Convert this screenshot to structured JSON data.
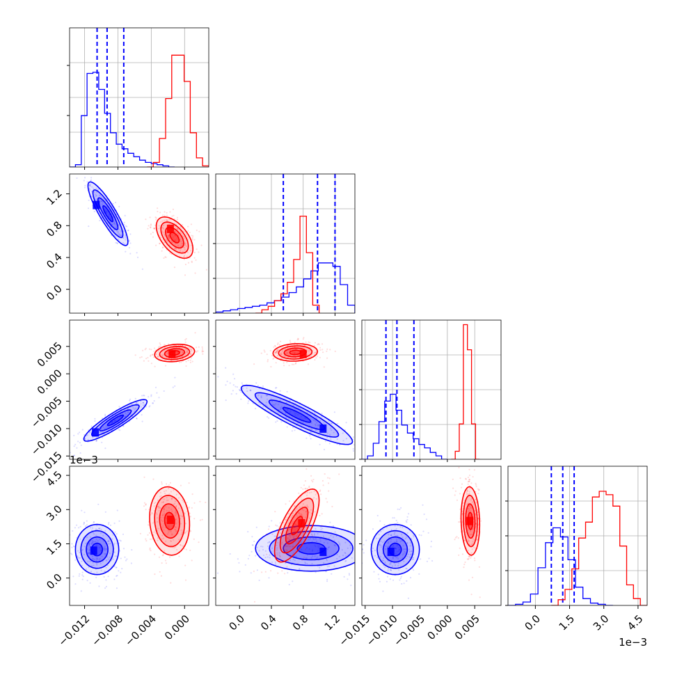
{
  "chart_data": {
    "type": "corner",
    "parameters": [
      {
        "range": [
          -0.0138,
          0.0029
        ],
        "ticks": [
          "-0.012",
          "-0.008",
          "-0.004",
          "0.000"
        ],
        "tick_values": [
          -0.012,
          -0.008,
          -0.004,
          0.0
        ],
        "offset": ""
      },
      {
        "range": [
          -0.3,
          1.45
        ],
        "ticks": [
          "0.0",
          "0.4",
          "0.8",
          "1.2"
        ],
        "tick_values": [
          0.0,
          0.4,
          0.8,
          1.2
        ],
        "offset": ""
      },
      {
        "range": [
          -0.0156,
          0.0098
        ],
        "ticks": [
          "-0.015",
          "-0.010",
          "-0.005",
          "0.000",
          "0.005"
        ],
        "tick_values": [
          -0.015,
          -0.01,
          -0.005,
          0.0,
          0.005
        ],
        "offset": ""
      },
      {
        "range": [
          -1.2,
          4.9
        ],
        "ticks": [
          "0.0",
          "1.5",
          "3.0",
          "4.5"
        ],
        "tick_values": [
          0.0,
          1.5,
          3.0,
          4.5
        ],
        "offset": "1e−3"
      }
    ],
    "series": [
      {
        "color": "#0000ff",
        "quantiles": [
          [
            -0.0105,
            -0.0093,
            -0.0073
          ],
          [
            0.55,
            0.98,
            1.2
          ],
          [
            -0.0112,
            -0.0092,
            -0.0061
          ],
          [
            0.7,
            1.2,
            1.7
          ]
        ],
        "hist": [
          {
            "edges": [
              -0.0138,
              -0.0012
            ],
            "counts": [
              0.0,
              0.02,
              0.45,
              0.82,
              0.83,
              0.68,
              0.47,
              0.3,
              0.2,
              0.16,
              0.12,
              0.09,
              0.06,
              0.04,
              0.03,
              0.02,
              0.01,
              0.0
            ]
          },
          {
            "edges": [
              -0.3,
              1.45
            ],
            "counts": [
              0.01,
              0.02,
              0.03,
              0.04,
              0.05,
              0.06,
              0.07,
              0.09,
              0.11,
              0.14,
              0.18,
              0.23,
              0.3,
              0.37,
              0.44,
              0.44,
              0.41,
              0.25,
              0.07
            ]
          },
          {
            "edges": [
              -0.0156,
              0.0
            ],
            "counts": [
              0.0,
              0.03,
              0.14,
              0.33,
              0.51,
              0.57,
              0.43,
              0.3,
              0.23,
              0.18,
              0.13,
              0.1,
              0.06,
              0.03,
              0.0
            ]
          },
          {
            "edges": [
              -1.2,
              3.4
            ],
            "counts": [
              0.0,
              0.01,
              0.03,
              0.1,
              0.33,
              0.55,
              0.68,
              0.6,
              0.4,
              0.16,
              0.06,
              0.02,
              0.01,
              0.0
            ]
          }
        ],
        "blobs": [
          {
            "i": 1,
            "j": 0,
            "cx": -0.0092,
            "cy": 0.95,
            "sx": 0.0012,
            "sy": 0.2,
            "rho": -0.88,
            "peak": [
              -0.0106,
              1.06
            ]
          },
          {
            "i": 2,
            "j": 0,
            "cx": -0.0083,
            "cy": -0.0085,
            "sx": 0.0019,
            "sy": 0.0019,
            "rho": 0.9,
            "peak": [
              -0.0107,
              -0.0107
            ]
          },
          {
            "i": 2,
            "j": 1,
            "cx": 0.72,
            "cy": -0.0075,
            "sx": 0.35,
            "sy": 0.0027,
            "rho": -0.9,
            "peak": [
              1.05,
              -0.01
            ]
          },
          {
            "i": 3,
            "j": 0,
            "cx": -0.0105,
            "cy": 1.25,
            "sx": 0.0013,
            "sy": 0.55,
            "rho": 0.0,
            "peak": [
              -0.0109,
              1.2
            ]
          },
          {
            "i": 3,
            "j": 1,
            "cx": 0.9,
            "cy": 1.3,
            "sx": 0.35,
            "sy": 0.5,
            "rho": 0.0,
            "peak": [
              1.05,
              1.15
            ]
          },
          {
            "i": 3,
            "j": 2,
            "cx": -0.0095,
            "cy": 1.25,
            "sx": 0.0022,
            "sy": 0.55,
            "rho": 0.0,
            "peak": [
              -0.0103,
              1.15
            ]
          }
        ]
      },
      {
        "color": "#ff0000",
        "quantiles": [],
        "hist": [
          {
            "edges": [
              -0.0045,
              0.0029
            ],
            "counts": [
              0.0,
              0.04,
              0.25,
              0.6,
              0.98,
              0.98,
              0.75,
              0.3,
              0.08,
              0.01
            ]
          },
          {
            "edges": [
              0.2,
              1.0
            ],
            "counts": [
              0.0,
              0.03,
              0.06,
              0.11,
              0.17,
              0.27,
              0.47,
              0.85,
              0.53,
              0.07
            ]
          },
          {
            "edges": [
              0.0007,
              0.0059
            ],
            "counts": [
              0.0,
              0.07,
              0.31,
              1.18,
              0.96,
              0.31,
              0.0
            ]
          },
          {
            "edges": [
              0.7,
              4.9
            ],
            "counts": [
              0.0,
              0.05,
              0.14,
              0.32,
              0.59,
              0.73,
              0.95,
              1.0,
              0.97,
              0.87,
              0.52,
              0.18,
              0.06,
              0.0
            ]
          }
        ],
        "blobs": [
          {
            "i": 1,
            "j": 0,
            "cx": -0.0012,
            "cy": 0.65,
            "sx": 0.0011,
            "sy": 0.13,
            "rho": -0.55,
            "peak": [
              -0.0017,
              0.76
            ]
          },
          {
            "i": 2,
            "j": 0,
            "cx": -0.0012,
            "cy": 0.0038,
            "sx": 0.0012,
            "sy": 0.0008,
            "rho": 0.2,
            "peak": [
              -0.0015,
              0.0036
            ]
          },
          {
            "i": 2,
            "j": 1,
            "cx": 0.7,
            "cy": 0.0039,
            "sx": 0.14,
            "sy": 0.0008,
            "rho": 0.1,
            "peak": [
              0.8,
              0.0036
            ]
          },
          {
            "i": 3,
            "j": 0,
            "cx": -0.0018,
            "cy": 2.5,
            "sx": 0.0012,
            "sy": 0.75,
            "rho": -0.1,
            "peak": [
              -0.0017,
              2.55
            ]
          },
          {
            "i": 3,
            "j": 1,
            "cx": 0.72,
            "cy": 2.3,
            "sx": 0.14,
            "sy": 0.8,
            "rho": 0.7,
            "peak": [
              0.78,
              2.4
            ]
          },
          {
            "i": 3,
            "j": 2,
            "cx": 0.0042,
            "cy": 2.5,
            "sx": 0.00085,
            "sy": 0.75,
            "rho": -0.1,
            "peak": [
              0.0041,
              2.5
            ]
          }
        ]
      }
    ]
  }
}
